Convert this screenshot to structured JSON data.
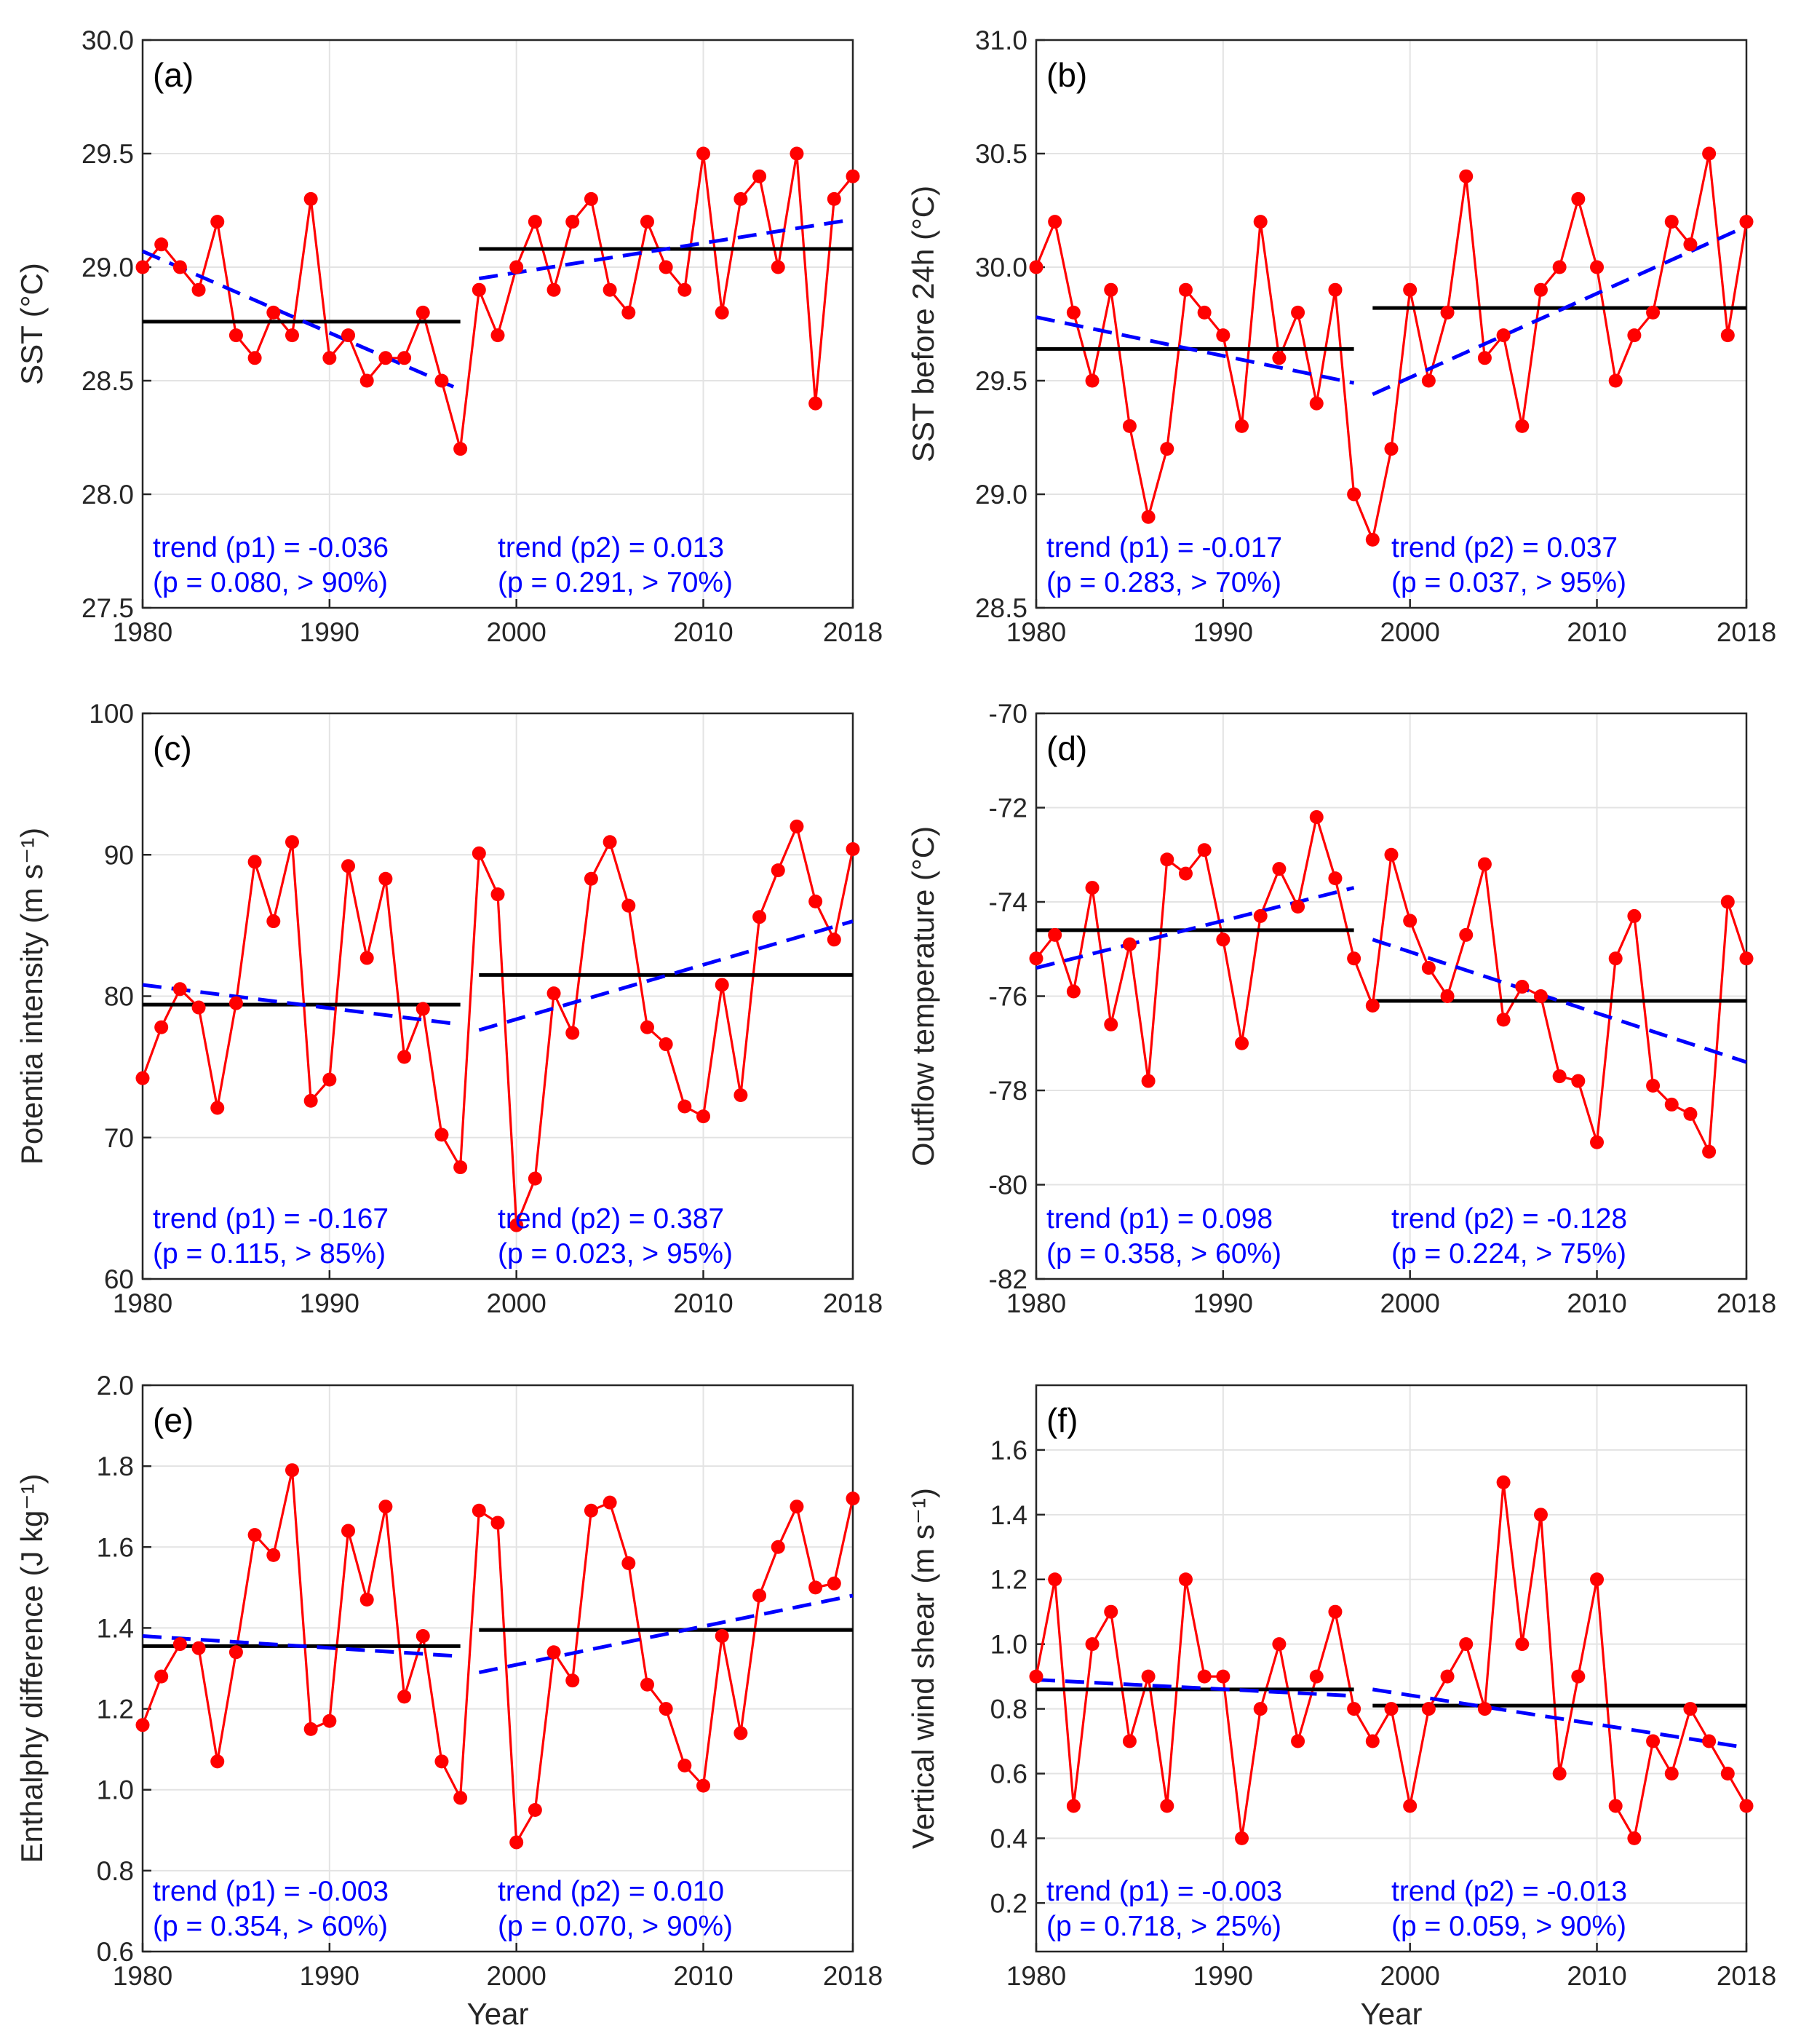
{
  "x_label": "Year",
  "colors": {
    "series": "#ff0000",
    "mean": "#000000",
    "trend": "#0000ff",
    "grid": "#e3e3e3",
    "axis": "#262626"
  },
  "chart_data": [
    {
      "panel": "(a)",
      "type": "line",
      "ylabel": "SST (°C)",
      "xlabel": "",
      "xlim": [
        1980,
        2018
      ],
      "xticks": [
        1980,
        1990,
        2000,
        2010,
        2018
      ],
      "ylim": [
        27.5,
        30.0
      ],
      "yticks": [
        27.5,
        28.0,
        28.5,
        29.0,
        29.5,
        30.0
      ],
      "ytick_labels": [
        "27.5",
        "28.0",
        "28.5",
        "29.0",
        "29.5",
        "30.0"
      ],
      "x": [
        1980,
        1981,
        1982,
        1983,
        1984,
        1985,
        1986,
        1987,
        1988,
        1989,
        1990,
        1991,
        1992,
        1993,
        1994,
        1995,
        1996,
        1997,
        1998,
        1999,
        2000,
        2001,
        2002,
        2003,
        2004,
        2005,
        2006,
        2007,
        2008,
        2009,
        2010,
        2011,
        2012,
        2013,
        2014,
        2015,
        2016,
        2017,
        2018
      ],
      "values": [
        29.0,
        29.1,
        29.0,
        28.9,
        29.2,
        28.7,
        28.6,
        28.8,
        28.7,
        29.3,
        28.6,
        28.7,
        28.5,
        28.6,
        28.6,
        28.8,
        28.5,
        28.2,
        28.9,
        28.7,
        29.0,
        29.2,
        28.9,
        29.2,
        29.3,
        28.9,
        28.8,
        29.2,
        29.0,
        28.9,
        29.5,
        28.8,
        29.3,
        29.4,
        29.0,
        29.5,
        28.4,
        29.3,
        29.4
      ],
      "mean1": {
        "x": [
          1980,
          1997
        ],
        "y": 28.76
      },
      "mean2": {
        "x": [
          1998,
          2018
        ],
        "y": 29.08
      },
      "trend1": {
        "x": [
          1980,
          1997
        ],
        "y": [
          29.07,
          28.46
        ]
      },
      "trend2": {
        "x": [
          1998,
          2018
        ],
        "y": [
          28.95,
          29.21
        ]
      },
      "ann1": [
        "trend (p1) = -0.036",
        "(p = 0.080, > 90%)"
      ],
      "ann2": [
        "trend (p2) = 0.013",
        "(p = 0.291, > 70%)"
      ]
    },
    {
      "panel": "(b)",
      "type": "line",
      "ylabel": "SST before 24h (°C)",
      "xlabel": "",
      "xlim": [
        1980,
        2018
      ],
      "xticks": [
        1980,
        1990,
        2000,
        2010,
        2018
      ],
      "ylim": [
        28.5,
        31.0
      ],
      "yticks": [
        28.5,
        29.0,
        29.5,
        30.0,
        30.5,
        31.0
      ],
      "ytick_labels": [
        "28.5",
        "29.0",
        "29.5",
        "30.0",
        "30.5",
        "31.0"
      ],
      "x": [
        1980,
        1981,
        1982,
        1983,
        1984,
        1985,
        1986,
        1987,
        1988,
        1989,
        1990,
        1991,
        1992,
        1993,
        1994,
        1995,
        1996,
        1997,
        1998,
        1999,
        2000,
        2001,
        2002,
        2003,
        2004,
        2005,
        2006,
        2007,
        2008,
        2009,
        2010,
        2011,
        2012,
        2013,
        2014,
        2015,
        2016,
        2017,
        2018
      ],
      "values": [
        30.0,
        30.2,
        29.8,
        29.5,
        29.9,
        29.3,
        28.9,
        29.2,
        29.9,
        29.8,
        29.7,
        29.3,
        30.2,
        29.6,
        29.8,
        29.4,
        29.9,
        29.0,
        28.8,
        29.2,
        29.9,
        29.5,
        29.8,
        30.4,
        29.6,
        29.7,
        29.3,
        29.9,
        30.0,
        30.3,
        30.0,
        29.5,
        29.7,
        29.8,
        30.2,
        30.1,
        30.5,
        29.7,
        30.2
      ],
      "mean1": {
        "x": [
          1980,
          1997
        ],
        "y": 29.64
      },
      "mean2": {
        "x": [
          1998,
          2018
        ],
        "y": 29.82
      },
      "trend1": {
        "x": [
          1980,
          1997
        ],
        "y": [
          29.78,
          29.49
        ]
      },
      "trend2": {
        "x": [
          1998,
          2018
        ],
        "y": [
          29.44,
          30.18
        ]
      },
      "ann1": [
        "trend (p1) = -0.017",
        "(p = 0.283, > 70%)"
      ],
      "ann2": [
        "trend (p2) = 0.037",
        "(p = 0.037, > 95%)"
      ]
    },
    {
      "panel": "(c)",
      "type": "line",
      "ylabel": "Potentia intensity (m s⁻¹)",
      "xlabel": "",
      "xlim": [
        1980,
        2018
      ],
      "xticks": [
        1980,
        1990,
        2000,
        2010,
        2018
      ],
      "ylim": [
        60,
        100
      ],
      "yticks": [
        60,
        70,
        80,
        90,
        100
      ],
      "ytick_labels": [
        "60",
        "70",
        "80",
        "90",
        "100"
      ],
      "x": [
        1980,
        1981,
        1982,
        1983,
        1984,
        1985,
        1986,
        1987,
        1988,
        1989,
        1990,
        1991,
        1992,
        1993,
        1994,
        1995,
        1996,
        1997,
        1998,
        1999,
        2000,
        2001,
        2002,
        2003,
        2004,
        2005,
        2006,
        2007,
        2008,
        2009,
        2010,
        2011,
        2012,
        2013,
        2014,
        2015,
        2016,
        2017,
        2018
      ],
      "values": [
        74.2,
        77.8,
        80.5,
        79.2,
        72.1,
        79.5,
        89.5,
        85.3,
        90.9,
        72.6,
        74.1,
        89.2,
        82.7,
        88.3,
        75.7,
        79.1,
        70.2,
        67.9,
        90.1,
        87.2,
        63.8,
        67.1,
        80.2,
        77.4,
        88.3,
        90.9,
        86.4,
        77.8,
        76.6,
        72.2,
        71.5,
        80.8,
        73.0,
        85.6,
        88.9,
        92.0,
        86.7,
        84.0,
        90.4
      ],
      "mean1": {
        "x": [
          1980,
          1997
        ],
        "y": 79.4
      },
      "mean2": {
        "x": [
          1998,
          2018
        ],
        "y": 81.5
      },
      "trend1": {
        "x": [
          1980,
          1997
        ],
        "y": [
          80.8,
          78.0
        ]
      },
      "trend2": {
        "x": [
          1998,
          2018
        ],
        "y": [
          77.6,
          85.3
        ]
      },
      "ann1": [
        "trend (p1) = -0.167",
        "(p = 0.115, > 85%)"
      ],
      "ann2": [
        "trend (p2) = 0.387",
        "(p = 0.023, > 95%)"
      ]
    },
    {
      "panel": "(d)",
      "type": "line",
      "ylabel": "Outflow temperature (°C)",
      "xlabel": "",
      "xlim": [
        1980,
        2018
      ],
      "xticks": [
        1980,
        1990,
        2000,
        2010,
        2018
      ],
      "ylim": [
        -82,
        -70
      ],
      "yticks": [
        -82,
        -80,
        -78,
        -76,
        -74,
        -72,
        -70
      ],
      "ytick_labels": [
        "-82",
        "-80",
        "-78",
        "-76",
        "-74",
        "-72",
        "-70"
      ],
      "x": [
        1980,
        1981,
        1982,
        1983,
        1984,
        1985,
        1986,
        1987,
        1988,
        1989,
        1990,
        1991,
        1992,
        1993,
        1994,
        1995,
        1996,
        1997,
        1998,
        1999,
        2000,
        2001,
        2002,
        2003,
        2004,
        2005,
        2006,
        2007,
        2008,
        2009,
        2010,
        2011,
        2012,
        2013,
        2014,
        2015,
        2016,
        2017,
        2018
      ],
      "values": [
        -75.2,
        -74.7,
        -75.9,
        -73.7,
        -76.6,
        -74.9,
        -77.8,
        -73.1,
        -73.4,
        -72.9,
        -74.8,
        -77.0,
        -74.3,
        -73.3,
        -74.1,
        -72.2,
        -73.5,
        -75.2,
        -76.2,
        -73.0,
        -74.4,
        -75.4,
        -76.0,
        -74.7,
        -73.2,
        -76.5,
        -75.8,
        -76.0,
        -77.7,
        -77.8,
        -79.1,
        -75.2,
        -74.3,
        -77.9,
        -78.3,
        -78.5,
        -79.3,
        -74.0,
        -75.2
      ],
      "mean1": {
        "x": [
          1980,
          1997
        ],
        "y": -74.6
      },
      "mean2": {
        "x": [
          1998,
          2018
        ],
        "y": -76.1
      },
      "trend1": {
        "x": [
          1980,
          1997
        ],
        "y": [
          -75.4,
          -73.7
        ]
      },
      "trend2": {
        "x": [
          1998,
          2018
        ],
        "y": [
          -74.8,
          -77.4
        ]
      },
      "ann1": [
        "trend (p1) = 0.098",
        "(p = 0.358, > 60%)"
      ],
      "ann2": [
        "trend (p2) = -0.128",
        "(p = 0.224, > 75%)"
      ]
    },
    {
      "panel": "(e)",
      "type": "line",
      "ylabel": "Enthalphy difference (J kg⁻¹)",
      "xlabel": "Year",
      "xlim": [
        1980,
        2018
      ],
      "xticks": [
        1980,
        1990,
        2000,
        2010,
        2018
      ],
      "ylim": [
        0.6,
        2.0
      ],
      "yticks": [
        0.6,
        0.8,
        1.0,
        1.2,
        1.4,
        1.6,
        1.8,
        2.0
      ],
      "ytick_labels": [
        "0.6",
        "0.8",
        "1.0",
        "1.2",
        "1.4",
        "1.6",
        "1.8",
        "2.0"
      ],
      "x": [
        1980,
        1981,
        1982,
        1983,
        1984,
        1985,
        1986,
        1987,
        1988,
        1989,
        1990,
        1991,
        1992,
        1993,
        1994,
        1995,
        1996,
        1997,
        1998,
        1999,
        2000,
        2001,
        2002,
        2003,
        2004,
        2005,
        2006,
        2007,
        2008,
        2009,
        2010,
        2011,
        2012,
        2013,
        2014,
        2015,
        2016,
        2017,
        2018
      ],
      "values": [
        1.16,
        1.28,
        1.36,
        1.35,
        1.07,
        1.34,
        1.63,
        1.58,
        1.79,
        1.15,
        1.17,
        1.64,
        1.47,
        1.7,
        1.23,
        1.38,
        1.07,
        0.98,
        1.69,
        1.66,
        0.87,
        0.95,
        1.34,
        1.27,
        1.69,
        1.71,
        1.56,
        1.26,
        1.2,
        1.06,
        1.01,
        1.38,
        1.14,
        1.48,
        1.6,
        1.7,
        1.5,
        1.51,
        1.72
      ],
      "mean1": {
        "x": [
          1980,
          1997
        ],
        "y": 1.355
      },
      "mean2": {
        "x": [
          1998,
          2018
        ],
        "y": 1.395
      },
      "trend1": {
        "x": [
          1980,
          1997
        ],
        "y": [
          1.38,
          1.33
        ]
      },
      "trend2": {
        "x": [
          1998,
          2018
        ],
        "y": [
          1.29,
          1.48
        ]
      },
      "ann1": [
        "trend (p1) = -0.003",
        "(p = 0.354, > 60%)"
      ],
      "ann2": [
        "trend (p2) = 0.010",
        "(p = 0.070, > 90%)"
      ]
    },
    {
      "panel": "(f)",
      "type": "line",
      "ylabel": "Vertical wind shear (m s⁻¹)",
      "xlabel": "Year",
      "xlim": [
        1980,
        2018
      ],
      "xticks": [
        1980,
        1990,
        2000,
        2010,
        2018
      ],
      "ylim": [
        0.05,
        1.8
      ],
      "yticks": [
        0.2,
        0.4,
        0.6,
        0.8,
        1.0,
        1.2,
        1.4,
        1.6
      ],
      "ytick_labels": [
        "0.2",
        "0.4",
        "0.6",
        "0.8",
        "1.0",
        "1.2",
        "1.4",
        "1.6"
      ],
      "x": [
        1980,
        1981,
        1982,
        1983,
        1984,
        1985,
        1986,
        1987,
        1988,
        1989,
        1990,
        1991,
        1992,
        1993,
        1994,
        1995,
        1996,
        1997,
        1998,
        1999,
        2000,
        2001,
        2002,
        2003,
        2004,
        2005,
        2006,
        2007,
        2008,
        2009,
        2010,
        2011,
        2012,
        2013,
        2014,
        2015,
        2016,
        2017,
        2018
      ],
      "values": [
        0.9,
        1.2,
        0.5,
        1.0,
        1.1,
        0.7,
        0.9,
        0.5,
        1.2,
        0.9,
        0.9,
        0.4,
        0.8,
        1.0,
        0.7,
        0.9,
        1.1,
        0.8,
        0.7,
        0.8,
        0.5,
        0.8,
        0.9,
        1.0,
        0.8,
        1.5,
        1.0,
        1.4,
        0.6,
        0.9,
        1.2,
        0.5,
        0.4,
        0.7,
        0.6,
        0.8,
        0.7,
        0.6,
        0.5
      ],
      "mean1": {
        "x": [
          1980,
          1997
        ],
        "y": 0.86
      },
      "mean2": {
        "x": [
          1998,
          2018
        ],
        "y": 0.81
      },
      "trend1": {
        "x": [
          1980,
          1997
        ],
        "y": [
          0.89,
          0.84
        ]
      },
      "trend2": {
        "x": [
          1998,
          2018
        ],
        "y": [
          0.86,
          0.68
        ]
      },
      "ann1": [
        "trend (p1) = -0.003",
        "(p = 0.718, > 25%)"
      ],
      "ann2": [
        "trend (p2) = -0.013",
        "(p = 0.059, > 90%)"
      ]
    }
  ]
}
